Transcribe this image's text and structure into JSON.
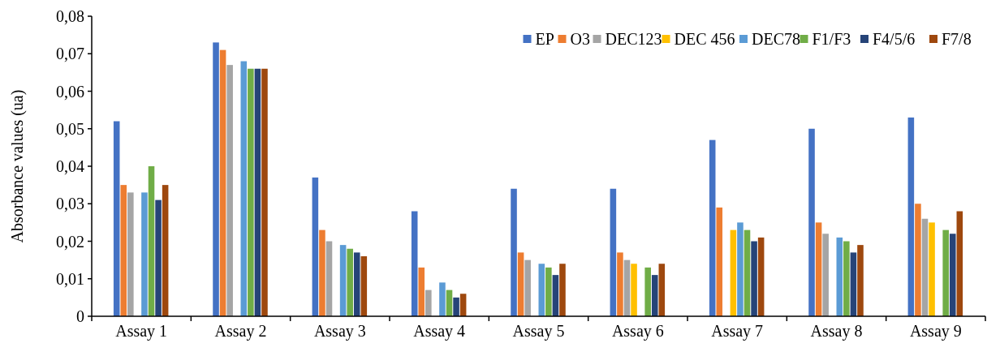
{
  "chart_data": {
    "type": "bar",
    "ylabel": "Absorbance values (ua)",
    "categories": [
      "Assay 1",
      "Assay 2",
      "Assay 3",
      "Assay 4",
      "Assay 5",
      "Assay 6",
      "Assay 7",
      "Assay 8",
      "Assay 9"
    ],
    "series": [
      {
        "name": "EP",
        "color": "#4472c4",
        "values": [
          0.052,
          0.073,
          0.037,
          0.028,
          0.034,
          0.034,
          0.047,
          0.05,
          0.053
        ]
      },
      {
        "name": "O3",
        "color": "#ed7d31",
        "values": [
          0.035,
          0.071,
          0.023,
          0.013,
          0.017,
          0.017,
          0.029,
          0.025,
          0.03
        ]
      },
      {
        "name": "DEC123",
        "color": "#a5a5a5",
        "values": [
          0.033,
          0.067,
          0.02,
          0.007,
          0.015,
          0.015,
          null,
          0.022,
          0.026
        ]
      },
      {
        "name": "DEC 456",
        "color": "#ffc000",
        "values": [
          null,
          null,
          null,
          null,
          null,
          0.014,
          0.023,
          null,
          0.025
        ]
      },
      {
        "name": "DEC78",
        "color": "#5b9bd5",
        "values": [
          0.033,
          0.068,
          0.019,
          0.009,
          0.014,
          null,
          0.025,
          0.021,
          null
        ]
      },
      {
        "name": "F1/F3",
        "color": "#70ad47",
        "values": [
          0.04,
          0.066,
          0.018,
          0.007,
          0.013,
          0.013,
          0.023,
          0.02,
          0.023
        ]
      },
      {
        "name": "F4/5/6",
        "color": "#264478",
        "values": [
          0.031,
          0.066,
          0.017,
          0.005,
          0.011,
          0.011,
          0.02,
          0.017,
          0.022
        ]
      },
      {
        "name": "F7/8",
        "color": "#9e480e",
        "values": [
          0.035,
          0.066,
          0.016,
          0.006,
          0.014,
          0.014,
          0.021,
          0.019,
          0.028
        ]
      }
    ],
    "ylim": [
      0,
      0.08
    ],
    "yticks": [
      0,
      {
        "value": 0.01,
        "label": "0,01"
      },
      {
        "value": 0.02,
        "label": "0,02"
      },
      {
        "value": 0.03,
        "label": "0,03"
      },
      {
        "value": 0.04,
        "label": "0,04"
      },
      {
        "value": 0.05,
        "label": "0,05"
      },
      {
        "value": 0.06,
        "label": "0,06"
      },
      {
        "value": 0.07,
        "label": "0,07"
      },
      {
        "value": 0.08,
        "label": "0,08"
      }
    ],
    "grid": false,
    "legend": "top right"
  }
}
